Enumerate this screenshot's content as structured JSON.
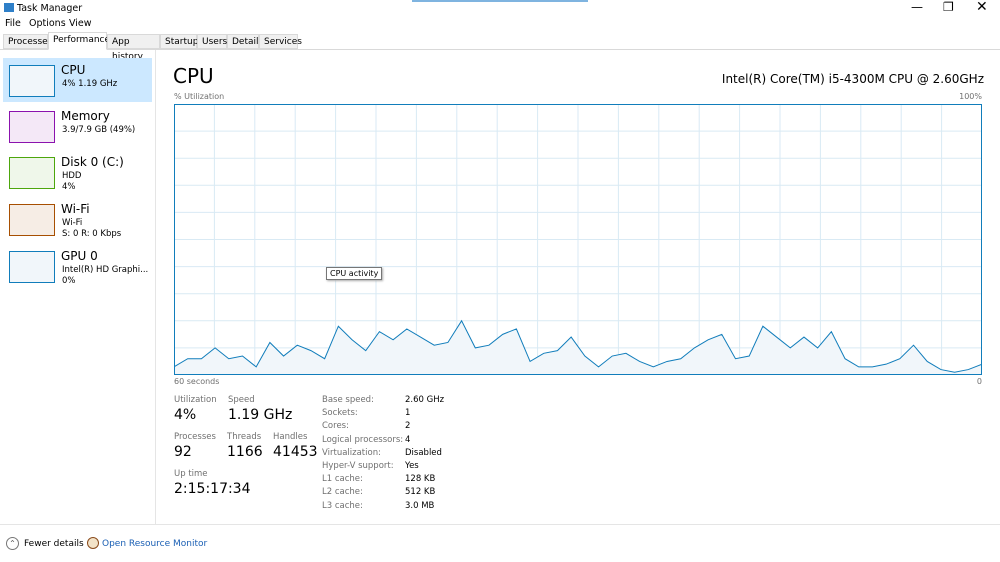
{
  "window": {
    "title": "Task Manager"
  },
  "menu": [
    "File",
    "Options",
    "View"
  ],
  "tabs": [
    "Processes",
    "Performance",
    "App history",
    "Startup",
    "Users",
    "Details",
    "Services"
  ],
  "sidebar": [
    {
      "name": "CPU",
      "lines": [
        "4%  1.19 GHz"
      ]
    },
    {
      "name": "Memory",
      "lines": [
        "3.9/7.9 GB (49%)"
      ]
    },
    {
      "name": "Disk 0 (C:)",
      "lines": [
        "HDD",
        "4%"
      ]
    },
    {
      "name": "Wi-Fi",
      "lines": [
        "Wi-Fi",
        "S: 0 R: 0 Kbps"
      ]
    },
    {
      "name": "GPU 0",
      "lines": [
        "Intel(R) HD Graphi...",
        "0%"
      ]
    }
  ],
  "header": {
    "title": "CPU",
    "model": "Intel(R) Core(TM) i5-4300M CPU @ 2.60GHz"
  },
  "graph": {
    "type": "line",
    "y_label": "% Utilization",
    "y_max_label": "100%",
    "x_start_label": "60 seconds",
    "x_end_label": "0",
    "tooltip": "CPU activity",
    "ylim": [
      0,
      100
    ],
    "values": [
      3,
      6,
      6,
      10,
      6,
      7,
      3,
      12,
      7,
      11,
      9,
      6,
      18,
      13,
      9,
      16,
      13,
      17,
      14,
      11,
      12,
      20,
      10,
      11,
      15,
      17,
      5,
      8,
      9,
      14,
      7,
      3,
      7,
      8,
      5,
      3,
      5,
      6,
      10,
      13,
      15,
      6,
      7,
      18,
      14,
      10,
      14,
      10,
      16,
      6,
      3,
      3,
      4,
      6,
      11,
      5,
      2,
      1,
      2,
      4
    ]
  },
  "stats": [
    {
      "label": "Utilization",
      "value": "4%"
    },
    {
      "label": "Speed",
      "value": "1.19 GHz"
    },
    {
      "label": "Processes",
      "value": "92"
    },
    {
      "label": "Threads",
      "value": "1166"
    },
    {
      "label": "Handles",
      "value": "41453"
    },
    {
      "label": "Up time",
      "value": "2:15:17:34"
    }
  ],
  "details": [
    [
      "Base speed:",
      "2.60 GHz"
    ],
    [
      "Sockets:",
      "1"
    ],
    [
      "Cores:",
      "2"
    ],
    [
      "Logical processors:",
      "4"
    ],
    [
      "Virtualization:",
      "Disabled"
    ],
    [
      "Hyper-V support:",
      "Yes"
    ],
    [
      "L1 cache:",
      "128 KB"
    ],
    [
      "L2 cache:",
      "512 KB"
    ],
    [
      "L3 cache:",
      "3.0 MB"
    ]
  ],
  "footer": {
    "fewer": "Fewer details",
    "monitor": "Open Resource Monitor"
  }
}
